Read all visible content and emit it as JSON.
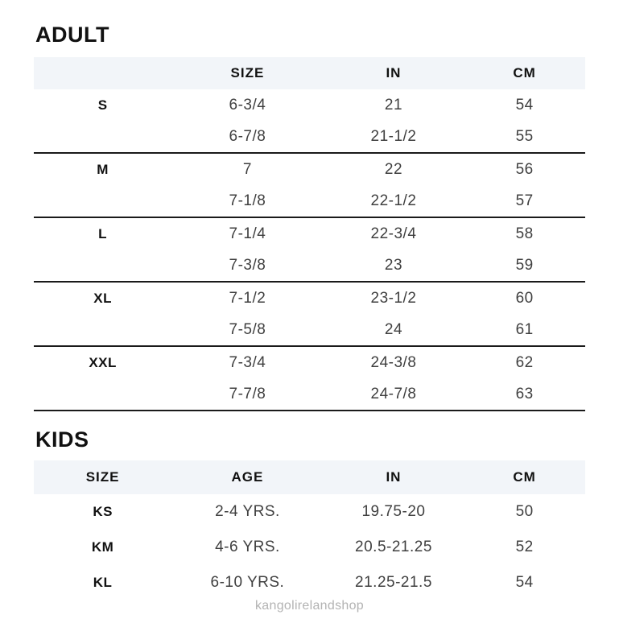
{
  "watermark": "kangolirelandshop",
  "colors": {
    "header_band": "#f2f5f9",
    "divider": "#1a1a1a",
    "heading_text": "#111111",
    "value_text": "#3f3f3f",
    "watermark_text": "#b3b3b3"
  },
  "adult": {
    "title": "ADULT",
    "headers": [
      "",
      "SIZE",
      "IN",
      "CM"
    ],
    "groups": [
      {
        "label": "S",
        "rows": [
          {
            "size": "6-3/4",
            "in": "21",
            "cm": "54"
          },
          {
            "size": "6-7/8",
            "in": "21-1/2",
            "cm": "55"
          }
        ]
      },
      {
        "label": "M",
        "rows": [
          {
            "size": "7",
            "in": "22",
            "cm": "56"
          },
          {
            "size": "7-1/8",
            "in": "22-1/2",
            "cm": "57"
          }
        ]
      },
      {
        "label": "L",
        "rows": [
          {
            "size": "7-1/4",
            "in": "22-3/4",
            "cm": "58"
          },
          {
            "size": "7-3/8",
            "in": "23",
            "cm": "59"
          }
        ]
      },
      {
        "label": "XL",
        "rows": [
          {
            "size": "7-1/2",
            "in": "23-1/2",
            "cm": "60"
          },
          {
            "size": "7-5/8",
            "in": "24",
            "cm": "61"
          }
        ]
      },
      {
        "label": "XXL",
        "rows": [
          {
            "size": "7-3/4",
            "in": "24-3/8",
            "cm": "62"
          },
          {
            "size": "7-7/8",
            "in": "24-7/8",
            "cm": "63"
          }
        ]
      }
    ]
  },
  "kids": {
    "title": "KIDS",
    "headers": [
      "SIZE",
      "AGE",
      "IN",
      "CM"
    ],
    "rows": [
      {
        "size": "KS",
        "age": "2-4 YRS.",
        "in": "19.75-20",
        "cm": "50"
      },
      {
        "size": "KM",
        "age": "4-6 YRS.",
        "in": "20.5-21.25",
        "cm": "52"
      },
      {
        "size": "KL",
        "age": "6-10 YRS.",
        "in": "21.25-21.5",
        "cm": "54"
      }
    ]
  }
}
